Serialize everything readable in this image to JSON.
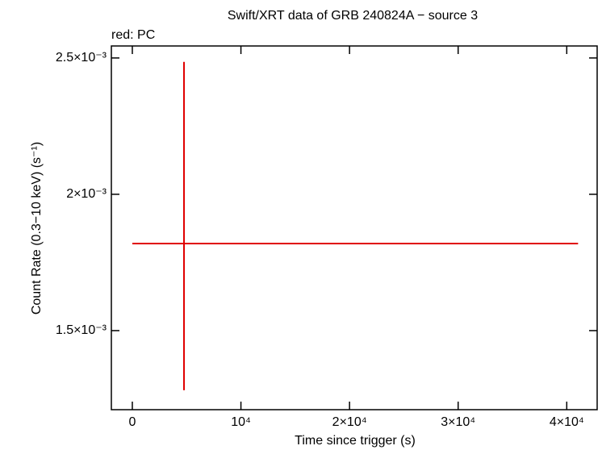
{
  "chart_data": {
    "type": "errorbar",
    "title": "Swift/XRT data of GRB 240824A − source 3",
    "subtitle": "red: PC",
    "x_label": "Time since trigger (s)",
    "y_label": "Count Rate (0.3−10 keV) (s⁻¹)",
    "color": "#e00000",
    "x": [
      4758
    ],
    "xerr_minus": [
      4758
    ],
    "xerr_plus": [
      36283
    ],
    "values": [
      0.0018195
    ],
    "yerr_minus": [
      0.000538
    ],
    "yerr_plus": [
      0.000666
    ],
    "xlim": [
      -1930,
      42800
    ],
    "ylim": [
      0.00121,
      0.002544
    ],
    "xticks": [
      0,
      {
        "value": 10000,
        "label": "10⁴"
      },
      {
        "value": 20000,
        "label": "2×10⁴"
      },
      {
        "value": 30000,
        "label": "3×10⁴"
      },
      {
        "value": 40000,
        "label": "4×10⁴"
      }
    ],
    "yticks": [
      {
        "value": 0.0015,
        "label": "1.5×10⁻³"
      },
      {
        "value": 0.002,
        "label": "2×10⁻³"
      },
      {
        "value": 0.0025,
        "label": "2.5×10⁻³"
      }
    ]
  }
}
